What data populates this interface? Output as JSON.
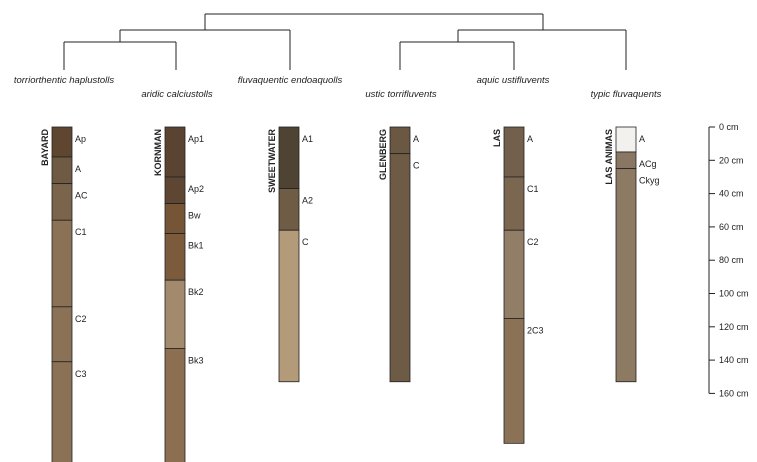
{
  "taxonomy_labels": [
    "torriorthentic haplustolls",
    "aridic calciustolls",
    "fluvaquentic endoaquolls",
    "ustic torrifluvents",
    "aquic ustifluvents",
    "typic fluvaquents"
  ],
  "profiles": [
    {
      "series": "BAYARD",
      "horizons": [
        {
          "name": "Ap",
          "top": 0,
          "bottom": 18,
          "color": "#5e4630"
        },
        {
          "name": "A",
          "top": 18,
          "bottom": 34,
          "color": "#6f5a43"
        },
        {
          "name": "AC",
          "top": 34,
          "bottom": 56,
          "color": "#7a644b"
        },
        {
          "name": "C1",
          "top": 56,
          "bottom": 108,
          "color": "#8b7256"
        },
        {
          "name": "C2",
          "top": 108,
          "bottom": 141,
          "color": "#8b7256"
        },
        {
          "name": "C3",
          "top": 141,
          "bottom": 202,
          "color": "#8b7256"
        }
      ]
    },
    {
      "series": "KORNMAN",
      "horizons": [
        {
          "name": "Ap1",
          "top": 0,
          "bottom": 30,
          "color": "#5a4331"
        },
        {
          "name": "Ap2",
          "top": 30,
          "bottom": 46,
          "color": "#5f4632"
        },
        {
          "name": "Bw",
          "top": 46,
          "bottom": 64,
          "color": "#765536"
        },
        {
          "name": "Bk1",
          "top": 64,
          "bottom": 92,
          "color": "#7b5b3c"
        },
        {
          "name": "Bk2",
          "top": 92,
          "bottom": 133,
          "color": "#a48a6c"
        },
        {
          "name": "Bk3",
          "top": 133,
          "bottom": 202,
          "color": "#8c6f50"
        }
      ]
    },
    {
      "series": "SWEETWATER",
      "horizons": [
        {
          "name": "A1",
          "top": 0,
          "bottom": 37,
          "color": "#4f4334"
        },
        {
          "name": "A2",
          "top": 37,
          "bottom": 62,
          "color": "#6f5c44"
        },
        {
          "name": "C",
          "top": 62,
          "bottom": 153,
          "color": "#b39a79"
        }
      ]
    },
    {
      "series": "GLENBERG",
      "horizons": [
        {
          "name": "A",
          "top": 0,
          "bottom": 16,
          "color": "#6b5843"
        },
        {
          "name": "C",
          "top": 16,
          "bottom": 153,
          "color": "#6e5b46"
        }
      ]
    },
    {
      "series": "LAS",
      "horizons": [
        {
          "name": "A",
          "top": 0,
          "bottom": 30,
          "color": "#72604c"
        },
        {
          "name": "C1",
          "top": 30,
          "bottom": 62,
          "color": "#7b6650"
        },
        {
          "name": "C2",
          "top": 62,
          "bottom": 115,
          "color": "#927d67"
        },
        {
          "name": "2C3",
          "top": 115,
          "bottom": 190,
          "color": "#8b7256"
        }
      ]
    },
    {
      "series": "LAS ANIMAS",
      "horizons": [
        {
          "name": "A",
          "top": 0,
          "bottom": 15,
          "color": "#f3f1ee"
        },
        {
          "name": "ACg",
          "top": 15,
          "bottom": 25,
          "color": "#8a7763"
        },
        {
          "name": "Ckyg",
          "top": 25,
          "bottom": 153,
          "color": "#8d7a62"
        }
      ]
    }
  ],
  "depth_scale": {
    "ticks": [
      0,
      20,
      40,
      60,
      80,
      100,
      120,
      140,
      160
    ],
    "unit": "cm"
  }
}
